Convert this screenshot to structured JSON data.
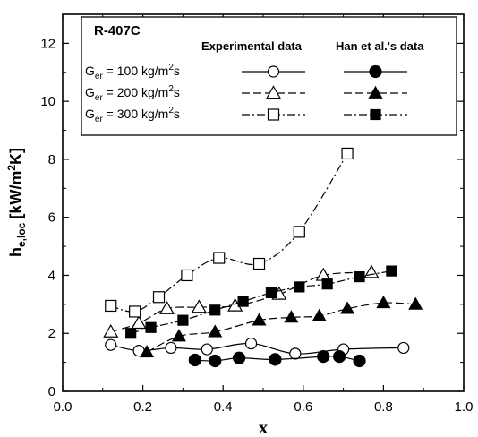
{
  "chart_data": {
    "type": "line",
    "xlabel": "x",
    "ylabel_main": "h",
    "ylabel_sub": "e,loc",
    "ylabel_unit": "[kW/m",
    "ylabel_unit_sup": "2",
    "ylabel_unit_end": "K]",
    "xlim": [
      0.0,
      1.0
    ],
    "ylim": [
      0,
      13
    ],
    "xticks": [
      "0.0",
      "0.2",
      "0.4",
      "0.6",
      "0.8",
      "1.0"
    ],
    "yticks": [
      "0",
      "2",
      "4",
      "6",
      "8",
      "10",
      "12"
    ],
    "grid": false,
    "legend": {
      "placement": "top-left",
      "title": "R-407C",
      "col_exp": "Experimental data",
      "col_han": "Han et al.'s data",
      "rows": [
        {
          "pre": "G",
          "sub": "er",
          "mid": " = 100 kg/m",
          "sup": "2",
          "post": "s"
        },
        {
          "pre": "G",
          "sub": "er",
          "mid": " = 200 kg/m",
          "sup": "2",
          "post": "s"
        },
        {
          "pre": "G",
          "sub": "er",
          "mid": " = 300 kg/m",
          "sup": "2",
          "post": "s"
        }
      ]
    },
    "series": [
      {
        "group": "experimental",
        "flux": 100,
        "marker": "circle",
        "filled": false,
        "dash": "solid",
        "x": [
          0.12,
          0.19,
          0.27,
          0.36,
          0.47,
          0.58,
          0.7,
          0.85
        ],
        "y": [
          1.6,
          1.4,
          1.5,
          1.45,
          1.65,
          1.3,
          1.45,
          1.5
        ]
      },
      {
        "group": "experimental",
        "flux": 200,
        "marker": "triangle",
        "filled": false,
        "dash": "dash",
        "x": [
          0.12,
          0.19,
          0.26,
          0.34,
          0.43,
          0.54,
          0.65,
          0.77
        ],
        "y": [
          2.05,
          2.35,
          2.85,
          2.9,
          2.95,
          3.35,
          4.0,
          4.1
        ]
      },
      {
        "group": "experimental",
        "flux": 300,
        "marker": "square",
        "filled": false,
        "dash": "dashdot",
        "x": [
          0.12,
          0.18,
          0.24,
          0.31,
          0.39,
          0.49,
          0.59,
          0.71
        ],
        "y": [
          2.95,
          2.75,
          3.25,
          4.0,
          4.6,
          4.4,
          5.5,
          8.2
        ]
      },
      {
        "group": "han",
        "flux": 100,
        "marker": "circle",
        "filled": true,
        "dash": "solid",
        "x": [
          0.33,
          0.38,
          0.44,
          0.53,
          0.65,
          0.69,
          0.74
        ],
        "y": [
          1.08,
          1.05,
          1.15,
          1.1,
          1.2,
          1.2,
          1.05
        ]
      },
      {
        "group": "han",
        "flux": 200,
        "marker": "triangle",
        "filled": true,
        "dash": "dash",
        "x": [
          0.21,
          0.29,
          0.38,
          0.49,
          0.57,
          0.64,
          0.71,
          0.8,
          0.88
        ],
        "y": [
          1.35,
          1.9,
          2.05,
          2.45,
          2.55,
          2.6,
          2.85,
          3.05,
          3.0
        ]
      },
      {
        "group": "han",
        "flux": 300,
        "marker": "square",
        "filled": true,
        "dash": "dashdot",
        "x": [
          0.17,
          0.22,
          0.3,
          0.38,
          0.45,
          0.52,
          0.59,
          0.66,
          0.74,
          0.82
        ],
        "y": [
          2.0,
          2.2,
          2.45,
          2.8,
          3.1,
          3.4,
          3.6,
          3.7,
          3.95,
          4.15
        ]
      }
    ]
  }
}
